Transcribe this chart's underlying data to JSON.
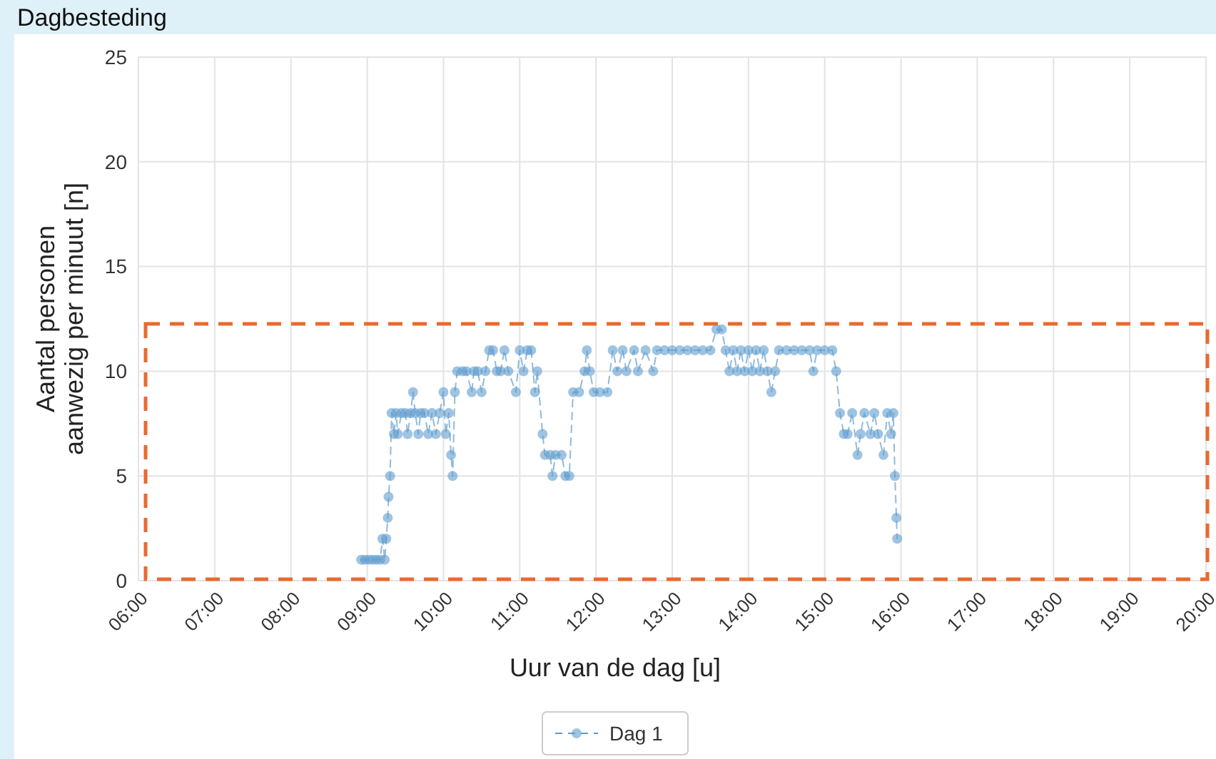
{
  "chart_data": {
    "type": "line",
    "title": "Dagbesteding",
    "xlabel": "Uur van de dag [u]",
    "ylabel": "Aantal personen\naanwezig per minuut [n]",
    "xlim": [
      6,
      20
    ],
    "xticks": [
      {
        "value": 6,
        "label": "06:00"
      },
      {
        "value": 7,
        "label": "07:00"
      },
      {
        "value": 8,
        "label": "08:00"
      },
      {
        "value": 9,
        "label": "09:00"
      },
      {
        "value": 10,
        "label": "10:00"
      },
      {
        "value": 11,
        "label": "11:00"
      },
      {
        "value": 12,
        "label": "12:00"
      },
      {
        "value": 13,
        "label": "13:00"
      },
      {
        "value": 14,
        "label": "14:00"
      },
      {
        "value": 15,
        "label": "15:00"
      },
      {
        "value": 16,
        "label": "16:00"
      },
      {
        "value": 17,
        "label": "17:00"
      },
      {
        "value": 18,
        "label": "18:00"
      },
      {
        "value": 19,
        "label": "19:00"
      },
      {
        "value": 20,
        "label": "20:00"
      }
    ],
    "ylim": [
      0,
      25
    ],
    "yticks": [
      0,
      5,
      10,
      15,
      20,
      25
    ],
    "grid": true,
    "legend": "bottom",
    "marker": "circle",
    "line_style": "dashed",
    "x": [
      8.92,
      8.97,
      9.02,
      9.07,
      9.12,
      9.17,
      9.2,
      9.23,
      9.25,
      9.27,
      9.28,
      9.3,
      9.32,
      9.35,
      9.38,
      9.4,
      9.45,
      9.5,
      9.53,
      9.57,
      9.6,
      9.63,
      9.67,
      9.7,
      9.75,
      9.8,
      9.85,
      9.9,
      9.95,
      10.0,
      10.03,
      10.07,
      10.1,
      10.12,
      10.15,
      10.18,
      10.25,
      10.3,
      10.37,
      10.4,
      10.45,
      10.5,
      10.55,
      10.6,
      10.65,
      10.7,
      10.75,
      10.8,
      10.85,
      10.95,
      11.0,
      11.05,
      11.1,
      11.15,
      11.2,
      11.23,
      11.3,
      11.33,
      11.4,
      11.43,
      11.47,
      11.55,
      11.6,
      11.65,
      11.7,
      11.78,
      11.85,
      11.88,
      11.92,
      11.97,
      12.05,
      12.15,
      12.22,
      12.28,
      12.35,
      12.4,
      12.5,
      12.55,
      12.65,
      12.75,
      12.8,
      12.9,
      13.0,
      13.1,
      13.2,
      13.3,
      13.4,
      13.5,
      13.58,
      13.65,
      13.7,
      13.75,
      13.8,
      13.85,
      13.9,
      13.95,
      14.0,
      14.05,
      14.1,
      14.15,
      14.2,
      14.25,
      14.3,
      14.35,
      14.4,
      14.5,
      14.6,
      14.7,
      14.8,
      14.85,
      14.9,
      15.0,
      15.1,
      15.15,
      15.2,
      15.25,
      15.3,
      15.36,
      15.43,
      15.47,
      15.52,
      15.6,
      15.65,
      15.7,
      15.77,
      15.82,
      15.87,
      15.9,
      15.92,
      15.94,
      15.95
    ],
    "series": [
      {
        "name": "Dag 1",
        "color": "#5f9ccf",
        "values": [
          1,
          1,
          1,
          1,
          1,
          1,
          2,
          1,
          2,
          3,
          4,
          5,
          8,
          7,
          8,
          7,
          8,
          8,
          7,
          8,
          9,
          8,
          7,
          8,
          8,
          7,
          8,
          7,
          8,
          9,
          7,
          8,
          6,
          5,
          9,
          10,
          10,
          10,
          9,
          10,
          10,
          9,
          10,
          11,
          11,
          10,
          10,
          11,
          10,
          9,
          11,
          10,
          11,
          11,
          9,
          10,
          7,
          6,
          6,
          5,
          6,
          6,
          5,
          5,
          9,
          9,
          10,
          11,
          10,
          9,
          9,
          9,
          11,
          10,
          11,
          10,
          11,
          10,
          11,
          10,
          11,
          11,
          11,
          11,
          11,
          11,
          11,
          11,
          12,
          12,
          11,
          10,
          11,
          10,
          11,
          10,
          11,
          10,
          11,
          10,
          11,
          10,
          9,
          10,
          11,
          11,
          11,
          11,
          11,
          10,
          11,
          11,
          11,
          10,
          8,
          7,
          7,
          8,
          6,
          7,
          8,
          7,
          8,
          7,
          6,
          8,
          7,
          8,
          5,
          3,
          2
        ]
      }
    ]
  }
}
